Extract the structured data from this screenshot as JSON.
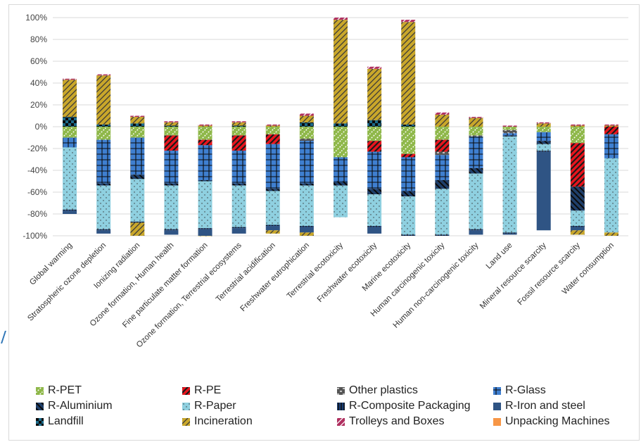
{
  "chart_data": {
    "type": "bar",
    "stacked": true,
    "ylim": [
      -100,
      100
    ],
    "y_ticks": [
      "100%",
      "80%",
      "60%",
      "40%",
      "20%",
      "0%",
      "-20%",
      "-40%",
      "-60%",
      "-80%",
      "-100%"
    ],
    "grid": true,
    "legend_position": "bottom",
    "categories": [
      "Global warming",
      "Stratospheric ozone depletion",
      "Ionizing radiation",
      "Ozone formation, Human health",
      "Fine particulate matter formation",
      "Ozone formation, Terrestrial ecosystems",
      "Terrestrial acidification",
      "Freshwater eutrophication",
      "Terrestrial ecotoxicity",
      "Freshwater ecotoxicity",
      "Marine ecotoxicity",
      "Human carcinogenic toxicity",
      "Human non-carcinogenic toxicity",
      "Land use",
      "Mineral resource scarcity",
      "Fossil resource scarcity",
      "Water consumption"
    ],
    "series": [
      {
        "name": "R-PET",
        "color": "#8fb84a",
        "pattern": "diag-dash",
        "values": [
          -10,
          -12,
          -10,
          -8,
          -12,
          -8,
          -7,
          -11,
          -28,
          -13,
          -25,
          -12,
          -8,
          -3,
          -5,
          -15,
          0
        ]
      },
      {
        "name": "R-PE",
        "color": "#e8141d",
        "pattern": "diag-bold",
        "values": [
          0,
          0,
          0,
          -14,
          -5,
          -14,
          -9,
          0,
          0,
          -10,
          -3,
          -11,
          0,
          0,
          0,
          -40,
          -7
        ]
      },
      {
        "name": "Other plastics",
        "color": "#555555",
        "pattern": "dashes",
        "values": [
          0,
          0,
          0,
          0,
          0,
          0,
          0,
          -2,
          0,
          0,
          0,
          -3,
          -1,
          -3,
          0,
          0,
          0
        ]
      },
      {
        "name": "R-Glass",
        "color": "#3f7fd0",
        "pattern": "grid",
        "values": [
          -9,
          -40,
          -34,
          -30,
          -32,
          -30,
          -41,
          -39,
          -22,
          -34,
          -31,
          -23,
          -29,
          -2,
          -8,
          0,
          -22
        ]
      },
      {
        "name": "R-Aluminium",
        "color": "#1f3f6a",
        "pattern": "diag-back",
        "values": [
          0,
          -2,
          -4,
          -2,
          -1,
          -2,
          -2,
          -2,
          -4,
          -5,
          -5,
          -8,
          -5,
          -1,
          -3,
          -22,
          0
        ]
      },
      {
        "name": "R-Paper",
        "color": "#8fd0e0",
        "pattern": "dots",
        "values": [
          -57,
          -40,
          -39,
          -40,
          -43,
          -38,
          -31,
          -37,
          -29,
          -29,
          -35,
          -42,
          -51,
          -88,
          -6,
          -14,
          -68
        ]
      },
      {
        "name": "R-Composite Packaging",
        "color": "#1a3e74",
        "pattern": "vbars",
        "values": [
          -1,
          -1,
          -1,
          -1,
          -1,
          -1,
          -1,
          -1,
          0,
          -1,
          -1,
          -1,
          -1,
          -1,
          -1,
          -1,
          0
        ]
      },
      {
        "name": "R-Iron and steel",
        "color": "#2f5484",
        "pattern": "solid",
        "values": [
          -3,
          -3,
          0,
          -4,
          -6,
          -5,
          -4,
          -5,
          0,
          -6,
          0,
          0,
          -4,
          -1,
          -72,
          -3,
          0
        ]
      },
      {
        "name": "Landfill",
        "color": "#1c6b8a",
        "pattern": "checker",
        "values": [
          9,
          2,
          3,
          1,
          0,
          1,
          0,
          4,
          3,
          6,
          2,
          0,
          0,
          0,
          0,
          0,
          0
        ]
      },
      {
        "name": "Incineration",
        "color": "#c9a72a",
        "pattern": "diag-fine",
        "values": [
          34,
          45,
          6,
          3,
          1,
          3,
          1,
          6,
          95,
          47,
          94,
          11,
          8,
          0,
          3,
          1,
          1
        ]
      },
      {
        "name": "Trolleys and Boxes",
        "color": "#b03060",
        "pattern": "diag-pink",
        "values": [
          1,
          1,
          1,
          1,
          1,
          1,
          1,
          2,
          2,
          2,
          2,
          2,
          1,
          1,
          1,
          1,
          1
        ]
      },
      {
        "name": "Unpacking Machines",
        "color": "#f79646",
        "pattern": "solid",
        "values": [
          0,
          0,
          0,
          0,
          0,
          0,
          0,
          0,
          0,
          0,
          0,
          0,
          0,
          0,
          0,
          0,
          0
        ]
      }
    ],
    "extras": {
      "Ionizing radiation_incineration_bottom": -12,
      "Fine particulate matter formation_incineration_bottom": -3,
      "Terrestrial acidification_incineration_bottom": -3,
      "Freshwater eutrophication_incineration_bottom": -4,
      "Fossil resource scarcity_incineration_bottom": -4,
      "Water consumption_incineration_bottom": -4
    }
  }
}
